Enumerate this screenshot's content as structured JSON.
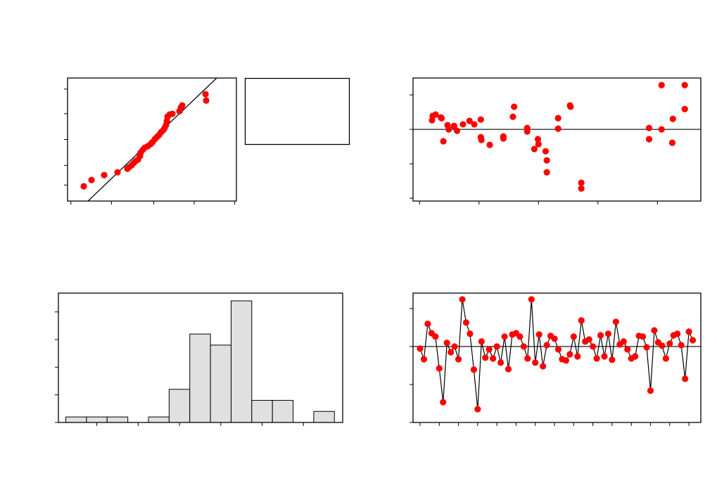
{
  "chart_data": [
    {
      "type": "scatter",
      "color": "#ff0000",
      "x": [
        9.6,
        14.2,
        21.7,
        29.6,
        35.4,
        36.3,
        37.9,
        39.2,
        40.4,
        41.7,
        42.9,
        43.3,
        44.6,
        45.8,
        47.5,
        49.2,
        50.4,
        51.7,
        52.9,
        54.2,
        55.4,
        56.7,
        57.5,
        58.3,
        58.8,
        59.2,
        60.4,
        62.1,
        66.3,
        67.1,
        67.9,
        81.7,
        82.1
      ],
      "values": [
        12,
        17.1,
        21.1,
        23.4,
        26.3,
        27.4,
        29.1,
        30.9,
        32.6,
        33.7,
        36.6,
        39.4,
        41.7,
        43.4,
        44.6,
        46.3,
        48,
        50.3,
        52,
        53.7,
        56,
        57.7,
        59.4,
        61.7,
        65.1,
        68.6,
        70.3,
        70.9,
        73.1,
        76,
        77.7,
        86.9,
        81.7
      ],
      "fit_line": {
        "x": [
          12.1,
          88.3
        ],
        "y": [
          0,
          100
        ]
      },
      "xlim": [
        0,
        100
      ],
      "ylim": [
        0,
        100
      ],
      "xticks": [
        2,
        26,
        51,
        75,
        99
      ],
      "yticks": [
        13,
        29,
        50,
        71,
        91
      ]
    },
    {
      "type": "scatter",
      "color": "#ff0000",
      "x": [
        0.21,
        0.27,
        0.36,
        0.22,
        0.37,
        0.4,
        0.47,
        0.49,
        0.58,
        0.63,
        0.73,
        0.84,
        0.92,
        1.03,
        1.03,
        1.04,
        1.18,
        1.41,
        1.41,
        1.57,
        1.59,
        1.81,
        1.81,
        1.93,
        1.99,
        2.0,
        2.12,
        2.14,
        2.14,
        2.33,
        2.33,
        2.53,
        2.54,
        2.72,
        2.72,
        3.86,
        3.86,
        4.07,
        4.07,
        4.25,
        4.26,
        4.46,
        4.46
      ],
      "values": [
        0.53,
        0.86,
        0.69,
        0.78,
        0.65,
        -0.69,
        0.24,
        0,
        0.2,
        -0.08,
        0.29,
        0.49,
        0.29,
        0.57,
        -0.45,
        -0.61,
        -0.9,
        -0.41,
        -0.53,
        0.73,
        1.31,
        0.08,
        -0.12,
        -1.14,
        -0.57,
        -0.86,
        -1.27,
        -1.8,
        -2.49,
        0.65,
        0.04,
        1.39,
        1.31,
        -3.1,
        -3.43,
        0.08,
        -0.57,
        0,
        2.57,
        -0.78,
        0.61,
        2.57,
        1.18
      ],
      "refline": 0,
      "xlim": [
        -0.11,
        4.73
      ],
      "ylim": [
        -4.16,
        2.98
      ],
      "xticks": [
        0,
        1,
        2,
        3,
        4
      ],
      "yticks": [
        -4,
        -2,
        0,
        2
      ]
    },
    {
      "type": "histogram",
      "color": "#e0e0e0",
      "bins": [
        -5.5,
        -4.5,
        -3.5,
        -2.5,
        -1.5,
        -0.5,
        0.5,
        1.5,
        2.5,
        3.5,
        4.5,
        5.5,
        6.5,
        7.5
      ],
      "values": [
        1,
        1,
        1,
        0,
        1,
        6,
        16,
        14,
        22,
        4,
        4,
        0,
        2
      ],
      "xlim": [
        -5.86,
        7.9
      ],
      "ylim": [
        0,
        23.4
      ],
      "xticks": [
        -4,
        -2,
        0,
        2,
        4,
        6
      ],
      "yticks": [
        0,
        5,
        10,
        15,
        20
      ]
    },
    {
      "type": "line",
      "color": "#ff0000",
      "x": [
        1,
        2,
        3,
        4,
        5,
        6,
        7,
        8,
        9,
        10,
        11,
        12,
        13,
        14,
        15,
        16,
        17,
        18,
        19,
        20,
        21,
        22,
        23,
        24,
        25,
        26,
        27,
        28,
        29,
        30,
        31,
        32,
        33,
        34,
        35,
        36,
        37,
        38,
        39,
        40,
        41,
        42,
        43,
        44,
        45,
        46,
        47,
        48,
        49,
        50,
        51,
        52,
        53,
        54,
        55,
        56,
        57,
        58,
        59,
        60,
        61,
        62,
        63,
        64,
        65,
        66,
        67,
        68,
        69,
        70,
        71,
        72
      ],
      "values": [
        -0.11,
        -0.67,
        1.19,
        0.7,
        0.52,
        -1.15,
        -2.93,
        0.19,
        -0.3,
        0,
        -0.67,
        2.48,
        1.26,
        0.67,
        -1.22,
        -3.3,
        0.26,
        -0.59,
        -0.15,
        -0.63,
        0,
        -0.85,
        0.52,
        -1.19,
        0.63,
        0.7,
        0.52,
        0,
        -0.63,
        2.48,
        -0.85,
        0.63,
        -1.04,
        0.07,
        0.56,
        0.41,
        -0.15,
        -0.67,
        -0.74,
        -0.41,
        0.52,
        -0.52,
        1.37,
        0.26,
        0.37,
        0,
        -0.63,
        0.59,
        -0.52,
        0.67,
        -0.7,
        1.3,
        0.11,
        0.26,
        -0.15,
        -0.63,
        -0.52,
        0.56,
        0.52,
        -0.04,
        -2.33,
        0.85,
        0.22,
        0.04,
        -0.63,
        0.15,
        0.59,
        0.67,
        0.07,
        -1.7,
        0.78,
        0.33
      ],
      "refline": 0,
      "xlim": [
        -0.83,
        74.1
      ],
      "ylim": [
        -4,
        2.81
      ],
      "xticks": [
        1,
        6,
        11,
        16,
        21,
        26,
        31,
        36,
        41,
        46,
        51,
        56,
        61,
        66,
        71
      ],
      "yticks": [
        -4,
        -2,
        0,
        2
      ]
    }
  ]
}
